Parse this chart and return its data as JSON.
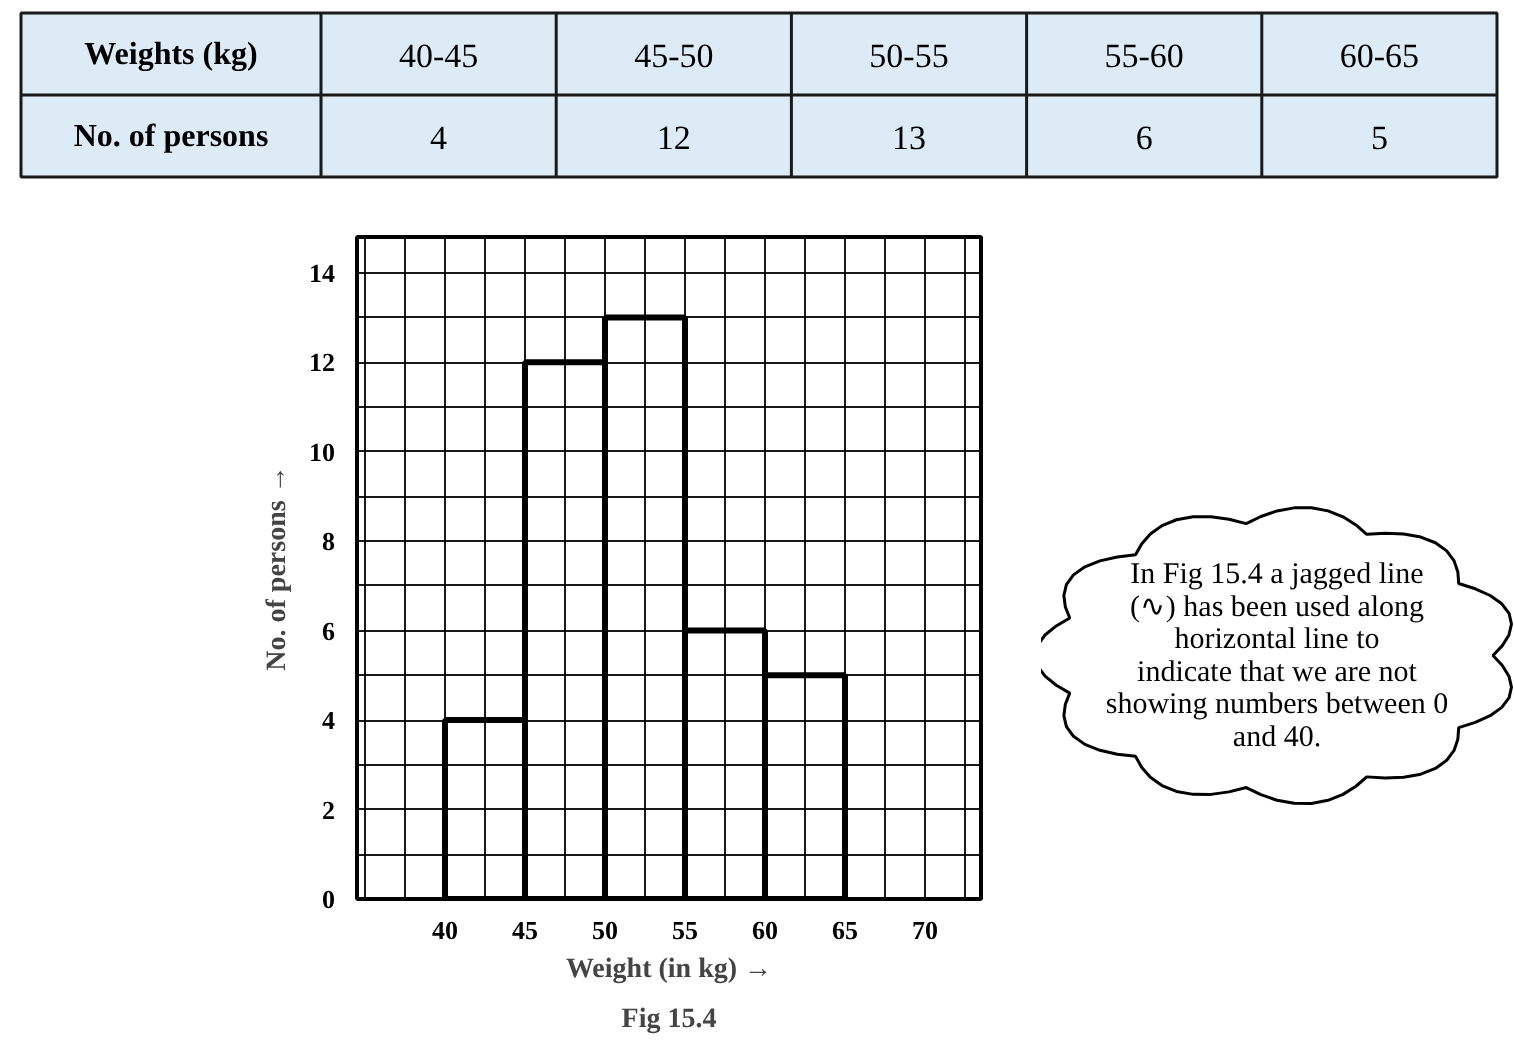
{
  "chart_data": [
    {
      "type": "other",
      "annotations": [
        "Weights (kg)",
        "40-45",
        "45-50",
        "50-55",
        "55-60",
        "60-65",
        "No. of persons",
        "4",
        "12",
        "13",
        "6",
        "5"
      ]
    },
    {
      "type": "histogram",
      "xlabel": "Weight (in kg) →",
      "ylabel": "No. of persons →",
      "bins": [
        40,
        45,
        50,
        55,
        60,
        65
      ],
      "values": [
        4,
        12,
        13,
        6,
        5
      ],
      "color": "#000000",
      "xlim": [
        34.5,
        73.5
      ],
      "ylim": [
        0,
        14.8
      ],
      "xticks": [
        40,
        45,
        50,
        55,
        60,
        65,
        70
      ],
      "yticks": [
        0,
        2,
        4,
        6,
        8,
        10,
        12,
        14
      ],
      "grid": true,
      "annotations": [
        "In Fig 15.4 a jagged line (∿) has been used along horizontal line to indicate that we are not showing numbers between 0 and 40.",
        "Fig 15.4"
      ]
    }
  ]
}
